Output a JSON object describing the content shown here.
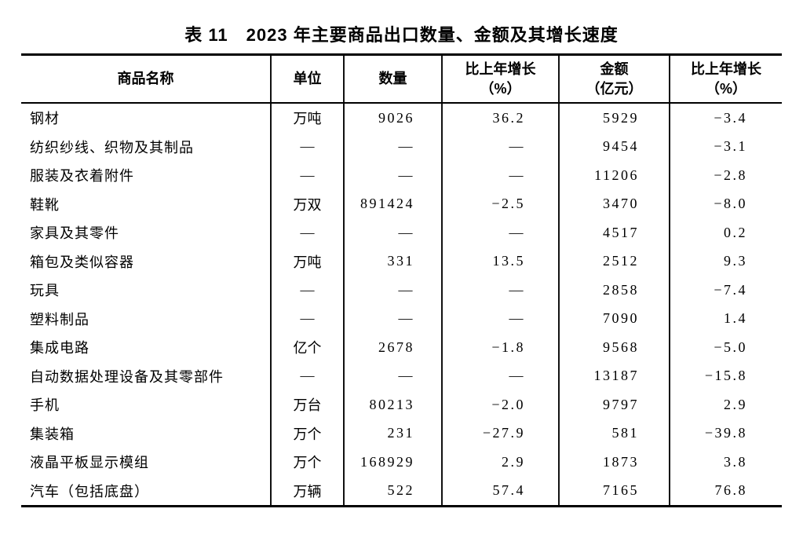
{
  "title": "表 11　2023 年主要商品出口数量、金额及其增长速度",
  "table": {
    "columns": [
      {
        "label": "商品名称",
        "sub": ""
      },
      {
        "label": "单位",
        "sub": ""
      },
      {
        "label": "数量",
        "sub": ""
      },
      {
        "label": "比上年增长",
        "sub": "（%）"
      },
      {
        "label": "金额",
        "sub": "（亿元）"
      },
      {
        "label": "比上年增长",
        "sub": "（%）"
      }
    ],
    "placeholder_dash": "—",
    "rows": [
      {
        "name": "钢材",
        "unit": "万吨",
        "qty": "9026",
        "qty_growth": "36.2",
        "value": "5929",
        "value_growth": "-3.4"
      },
      {
        "name": "纺织纱线、织物及其制品",
        "unit": "—",
        "qty": "—",
        "qty_growth": "—",
        "value": "9454",
        "value_growth": "-3.1"
      },
      {
        "name": "服装及衣着附件",
        "unit": "—",
        "qty": "—",
        "qty_growth": "—",
        "value": "11206",
        "value_growth": "-2.8"
      },
      {
        "name": "鞋靴",
        "unit": "万双",
        "qty": "891424",
        "qty_growth": "-2.5",
        "value": "3470",
        "value_growth": "-8.0"
      },
      {
        "name": "家具及其零件",
        "unit": "—",
        "qty": "—",
        "qty_growth": "—",
        "value": "4517",
        "value_growth": "0.2"
      },
      {
        "name": "箱包及类似容器",
        "unit": "万吨",
        "qty": "331",
        "qty_growth": "13.5",
        "value": "2512",
        "value_growth": "9.3"
      },
      {
        "name": "玩具",
        "unit": "—",
        "qty": "—",
        "qty_growth": "—",
        "value": "2858",
        "value_growth": "-7.4"
      },
      {
        "name": "塑料制品",
        "unit": "—",
        "qty": "—",
        "qty_growth": "—",
        "value": "7090",
        "value_growth": "1.4"
      },
      {
        "name": "集成电路",
        "unit": "亿个",
        "qty": "2678",
        "qty_growth": "-1.8",
        "value": "9568",
        "value_growth": "-5.0"
      },
      {
        "name": "自动数据处理设备及其零部件",
        "unit": "—",
        "qty": "—",
        "qty_growth": "—",
        "value": "13187",
        "value_growth": "-15.8"
      },
      {
        "name": "手机",
        "unit": "万台",
        "qty": "80213",
        "qty_growth": "-2.0",
        "value": "9797",
        "value_growth": "2.9"
      },
      {
        "name": "集装箱",
        "unit": "万个",
        "qty": "231",
        "qty_growth": "-27.9",
        "value": "581",
        "value_growth": "-39.8"
      },
      {
        "name": "液晶平板显示模组",
        "unit": "万个",
        "qty": "168929",
        "qty_growth": "2.9",
        "value": "1873",
        "value_growth": "3.8"
      },
      {
        "name": "汽车（包括底盘）",
        "unit": "万辆",
        "qty": "522",
        "qty_growth": "57.4",
        "value": "7165",
        "value_growth": "76.8"
      }
    ]
  },
  "colors": {
    "text": "#000000",
    "background": "#ffffff",
    "border": "#000000"
  }
}
